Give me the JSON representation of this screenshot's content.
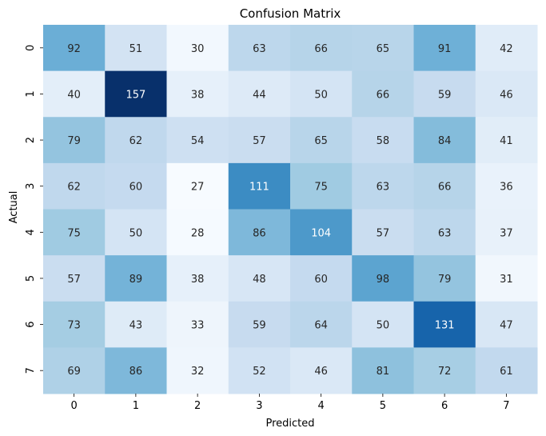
{
  "chart_data": {
    "type": "heatmap",
    "title": "Confusion Matrix",
    "xlabel": "Predicted",
    "ylabel": "Actual",
    "x_categories": [
      "0",
      "1",
      "2",
      "3",
      "4",
      "5",
      "6",
      "7"
    ],
    "y_categories": [
      "0",
      "1",
      "2",
      "3",
      "4",
      "5",
      "6",
      "7"
    ],
    "values": [
      [
        92,
        51,
        30,
        63,
        66,
        65,
        91,
        42
      ],
      [
        40,
        157,
        38,
        44,
        50,
        66,
        59,
        46
      ],
      [
        79,
        62,
        54,
        57,
        65,
        58,
        84,
        41
      ],
      [
        62,
        60,
        27,
        111,
        75,
        63,
        66,
        36
      ],
      [
        75,
        50,
        28,
        86,
        104,
        57,
        63,
        37
      ],
      [
        57,
        89,
        38,
        48,
        60,
        98,
        79,
        31
      ],
      [
        73,
        43,
        33,
        59,
        64,
        50,
        131,
        47
      ],
      [
        69,
        86,
        32,
        52,
        46,
        81,
        72,
        61
      ]
    ],
    "colormap": "Blues",
    "annotated": true,
    "colorbar": false
  }
}
